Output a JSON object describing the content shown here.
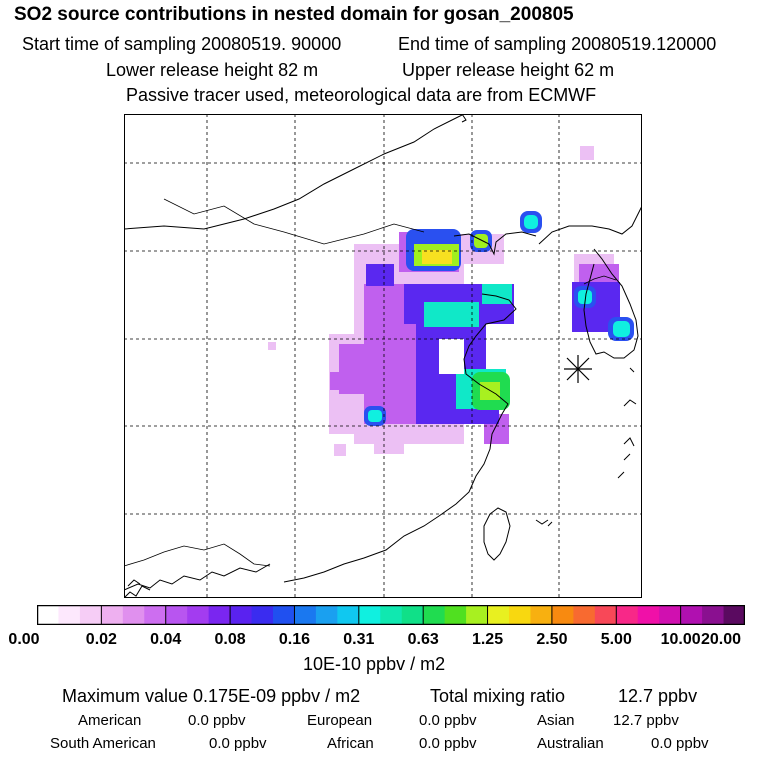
{
  "header": {
    "title": "SO2 source contributions in nested domain for gosan_200805",
    "start_time": "Start time of sampling 20080519. 90000",
    "end_time": "End time of sampling 20080519.120000",
    "lower_release": "Lower release height   82 m",
    "upper_release": "Upper release height   62 m",
    "tracer_note": "Passive tracer used, meteorological data are from ECMWF"
  },
  "colors": {
    "scale": [
      "#ffffff",
      "#fde8fd",
      "#f6cdf6",
      "#eeb0f0",
      "#e090ee",
      "#cd6ef0",
      "#b855f0",
      "#a33cf0",
      "#7a26f0",
      "#5a22f0",
      "#3a2cf0",
      "#2050f0",
      "#1a78f0",
      "#1aa0f0",
      "#10c8f0",
      "#10f0e0",
      "#10e8b0",
      "#10e088",
      "#20dc50",
      "#50e020",
      "#a8f020",
      "#e8f020",
      "#f8d810",
      "#f8b010",
      "#f88a10",
      "#f86a30",
      "#f84858",
      "#f82888",
      "#f010a8",
      "#d010b0",
      "#b010b0",
      "#8a1090",
      "#5a0a60"
    ]
  },
  "colorbar": {
    "ticks": [
      "0.00",
      "0.02",
      "0.04",
      "0.08",
      "0.16",
      "0.31",
      "0.63",
      "1.25",
      "2.50",
      "5.00",
      "10.00",
      "20.00"
    ],
    "unit_label": "10E-10 ppbv / m2"
  },
  "summary": {
    "max_value": "Maximum value  0.175E-09 ppbv / m2",
    "total_mixing": "Total mixing ratio",
    "total_value": "12.7 ppbv",
    "regions": [
      {
        "name": "American",
        "value": "0.0 ppbv"
      },
      {
        "name": "European",
        "value": "0.0 ppbv"
      },
      {
        "name": "Asian",
        "value": "12.7 ppbv"
      },
      {
        "name": "South American",
        "value": "0.0 ppbv"
      },
      {
        "name": "African",
        "value": "0.0 ppbv"
      },
      {
        "name": "Australian",
        "value": "0.0 ppbv"
      }
    ]
  }
}
